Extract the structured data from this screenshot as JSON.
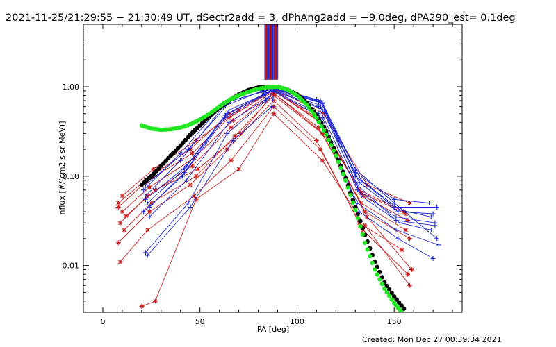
{
  "chart_data": {
    "type": "line",
    "title": "2021-11-25/21:29:55 − 21:30:49 UT, dSectr2add = 3, dPhAng2add = −9.0deg, dPA290_est=  0.1deg",
    "xlabel": "PA [deg]",
    "ylabel": "nflux [#/(cm2 s sr MeV)]",
    "footer": "Created: Mon Dec 27 00:39:34 2021",
    "xlim": [
      -10,
      185
    ],
    "ylim": [
      0.003,
      5.0
    ],
    "yscale": "log",
    "x_ticks": [
      {
        "value": 0,
        "label": "0"
      },
      {
        "value": 50,
        "label": "50"
      },
      {
        "value": 100,
        "label": "100"
      },
      {
        "value": 150,
        "label": "150"
      }
    ],
    "y_ticks": [
      {
        "value": 0.01,
        "label": "0.01"
      },
      {
        "value": 0.1,
        "label": "0.10"
      },
      {
        "value": 1.0,
        "label": "1.00"
      }
    ],
    "grid": false,
    "legend": "none",
    "colors": {
      "red": "#c81e1e",
      "blue": "#1e28d2",
      "green": "#22e622",
      "black": "#000000"
    },
    "vertical_lines": {
      "x_values": [
        83.5,
        84.0,
        84.5,
        85.0,
        85.5,
        86.0,
        86.5,
        87.0,
        87.5,
        88.0,
        88.5,
        89.0,
        89.5,
        90.0
      ],
      "y_from": 1.2,
      "y_to": 5.0,
      "colors": [
        "#1e28d2",
        "#c81e1e",
        "#1e28d2",
        "#c81e1e",
        "#1e28d2",
        "#c81e1e",
        "#1e28d2",
        "#c81e1e",
        "#1e28d2",
        "#c81e1e",
        "#1e28d2",
        "#c81e1e",
        "#1e28d2",
        "#c81e1e"
      ]
    },
    "fit_curves": [
      {
        "color": "black",
        "x": [
          20,
          25,
          30,
          35,
          40,
          45,
          50,
          55,
          60,
          65,
          70,
          75,
          80,
          85,
          90,
          95,
          100,
          105,
          110,
          115,
          120,
          125,
          130,
          135,
          140,
          145,
          150,
          155
        ],
        "y": [
          0.08,
          0.1,
          0.13,
          0.17,
          0.22,
          0.29,
          0.37,
          0.47,
          0.58,
          0.7,
          0.82,
          0.92,
          0.98,
          1.0,
          1.0,
          0.93,
          0.82,
          0.66,
          0.48,
          0.32,
          0.18,
          0.095,
          0.045,
          0.022,
          0.011,
          0.0065,
          0.0045,
          0.0033
        ]
      },
      {
        "color": "green",
        "x": [
          20,
          25,
          30,
          35,
          40,
          45,
          50,
          55,
          60,
          65,
          70,
          75,
          80,
          85,
          90,
          95,
          100,
          105,
          110,
          115,
          120,
          125,
          130,
          135,
          140,
          145,
          150,
          154
        ],
        "y": [
          0.37,
          0.34,
          0.33,
          0.335,
          0.35,
          0.38,
          0.43,
          0.5,
          0.6,
          0.71,
          0.8,
          0.88,
          0.95,
          0.99,
          1.0,
          0.93,
          0.8,
          0.63,
          0.45,
          0.29,
          0.17,
          0.09,
          0.042,
          0.018,
          0.009,
          0.0055,
          0.0038,
          0.003
        ]
      }
    ],
    "series": [
      {
        "color": "red",
        "x": [
          8,
          22,
          45,
          65,
          88,
          110,
          132,
          155
        ],
        "y": [
          0.05,
          0.09,
          0.2,
          0.5,
          0.95,
          0.45,
          0.07,
          0.04
        ]
      },
      {
        "color": "red",
        "x": [
          10,
          24,
          47,
          67,
          88,
          112,
          134,
          157
        ],
        "y": [
          0.04,
          0.075,
          0.16,
          0.42,
          0.9,
          0.4,
          0.06,
          0.032
        ]
      },
      {
        "color": "red",
        "x": [
          9,
          23,
          46,
          66,
          88,
          111,
          133,
          156
        ],
        "y": [
          0.03,
          0.06,
          0.13,
          0.35,
          0.85,
          0.35,
          0.05,
          0.025
        ]
      },
      {
        "color": "red",
        "x": [
          11,
          25,
          48,
          68,
          88,
          113,
          135,
          158
        ],
        "y": [
          0.025,
          0.05,
          0.1,
          0.28,
          0.8,
          0.3,
          0.04,
          0.02
        ]
      },
      {
        "color": "red",
        "x": [
          8,
          24,
          45,
          64,
          88,
          110,
          132,
          154
        ],
        "y": [
          0.018,
          0.04,
          0.08,
          0.2,
          0.7,
          0.25,
          0.03,
          0.015
        ]
      },
      {
        "color": "red",
        "x": [
          10,
          26,
          48,
          70,
          88,
          114,
          136,
          158
        ],
        "y": [
          0.06,
          0.12,
          0.25,
          0.55,
          0.95,
          0.5,
          0.08,
          0.05
        ]
      },
      {
        "color": "red",
        "x": [
          9,
          23,
          47,
          66,
          88,
          112,
          134,
          157
        ],
        "y": [
          0.011,
          0.025,
          0.06,
          0.15,
          0.6,
          0.2,
          0.025,
          0.008
        ]
      },
      {
        "color": "red",
        "x": [
          12,
          27,
          49,
          71,
          88,
          115,
          136,
          159
        ],
        "y": [
          0.036,
          0.07,
          0.12,
          0.3,
          0.85,
          0.28,
          0.035,
          0.009
        ]
      },
      {
        "color": "red",
        "x": [
          20,
          27,
          48,
          70,
          88,
          113,
          135,
          158
        ],
        "y": [
          0.0035,
          0.004,
          0.055,
          0.12,
          0.5,
          0.15,
          0.028,
          0.006
        ]
      },
      {
        "color": "red",
        "x": [
          8,
          22,
          46,
          65,
          88,
          111,
          133,
          156
        ],
        "y": [
          0.045,
          0.085,
          0.18,
          0.45,
          0.92,
          0.42,
          0.065,
          0.038
        ]
      },
      {
        "color": "blue",
        "x": [
          22,
          40,
          62,
          82,
          88,
          112,
          130,
          150,
          172
        ],
        "y": [
          0.06,
          0.15,
          0.6,
          0.9,
          0.98,
          0.7,
          0.1,
          0.045,
          0.045
        ]
      },
      {
        "color": "blue",
        "x": [
          23,
          42,
          64,
          84,
          88,
          113,
          132,
          152,
          170
        ],
        "y": [
          0.05,
          0.12,
          0.5,
          0.85,
          0.95,
          0.65,
          0.085,
          0.04,
          0.038
        ]
      },
      {
        "color": "blue",
        "x": [
          21,
          41,
          63,
          83,
          88,
          111,
          131,
          151,
          171
        ],
        "y": [
          0.04,
          0.1,
          0.45,
          0.8,
          0.92,
          0.6,
          0.07,
          0.035,
          0.03
        ]
      },
      {
        "color": "blue",
        "x": [
          24,
          43,
          65,
          85,
          88,
          114,
          133,
          153,
          169
        ],
        "y": [
          0.035,
          0.09,
          0.4,
          0.75,
          0.9,
          0.55,
          0.06,
          0.03,
          0.025
        ]
      },
      {
        "color": "blue",
        "x": [
          22,
          44,
          66,
          86,
          88,
          112,
          130,
          150,
          172
        ],
        "y": [
          0.08,
          0.2,
          0.7,
          0.92,
          0.97,
          0.68,
          0.12,
          0.05,
          0.02
        ]
      },
      {
        "color": "blue",
        "x": [
          22,
          44,
          64,
          84,
          88,
          111,
          131,
          151,
          173
        ],
        "y": [
          0.014,
          0.05,
          0.3,
          0.7,
          0.9,
          0.5,
          0.05,
          0.025,
          0.017
        ]
      },
      {
        "color": "blue",
        "x": [
          23,
          45,
          67,
          87,
          88,
          113,
          132,
          152,
          170
        ],
        "y": [
          0.013,
          0.045,
          0.25,
          0.6,
          0.88,
          0.45,
          0.04,
          0.02,
          0.012
        ]
      },
      {
        "color": "blue",
        "x": [
          21,
          40,
          62,
          82,
          88,
          110,
          130,
          150,
          168
        ],
        "y": [
          0.07,
          0.18,
          0.65,
          0.88,
          0.96,
          0.72,
          0.11,
          0.055,
          0.05
        ]
      },
      {
        "color": "blue",
        "x": [
          24,
          42,
          63,
          83,
          88,
          112,
          131,
          151,
          171
        ],
        "y": [
          0.045,
          0.11,
          0.48,
          0.82,
          0.94,
          0.62,
          0.08,
          0.032,
          0.028
        ]
      },
      {
        "color": "blue",
        "x": [
          22,
          43,
          65,
          85,
          88,
          113,
          133,
          153,
          169
        ],
        "y": [
          0.055,
          0.13,
          0.55,
          0.86,
          0.95,
          0.66,
          0.09,
          0.042,
          0.035
        ]
      }
    ]
  }
}
